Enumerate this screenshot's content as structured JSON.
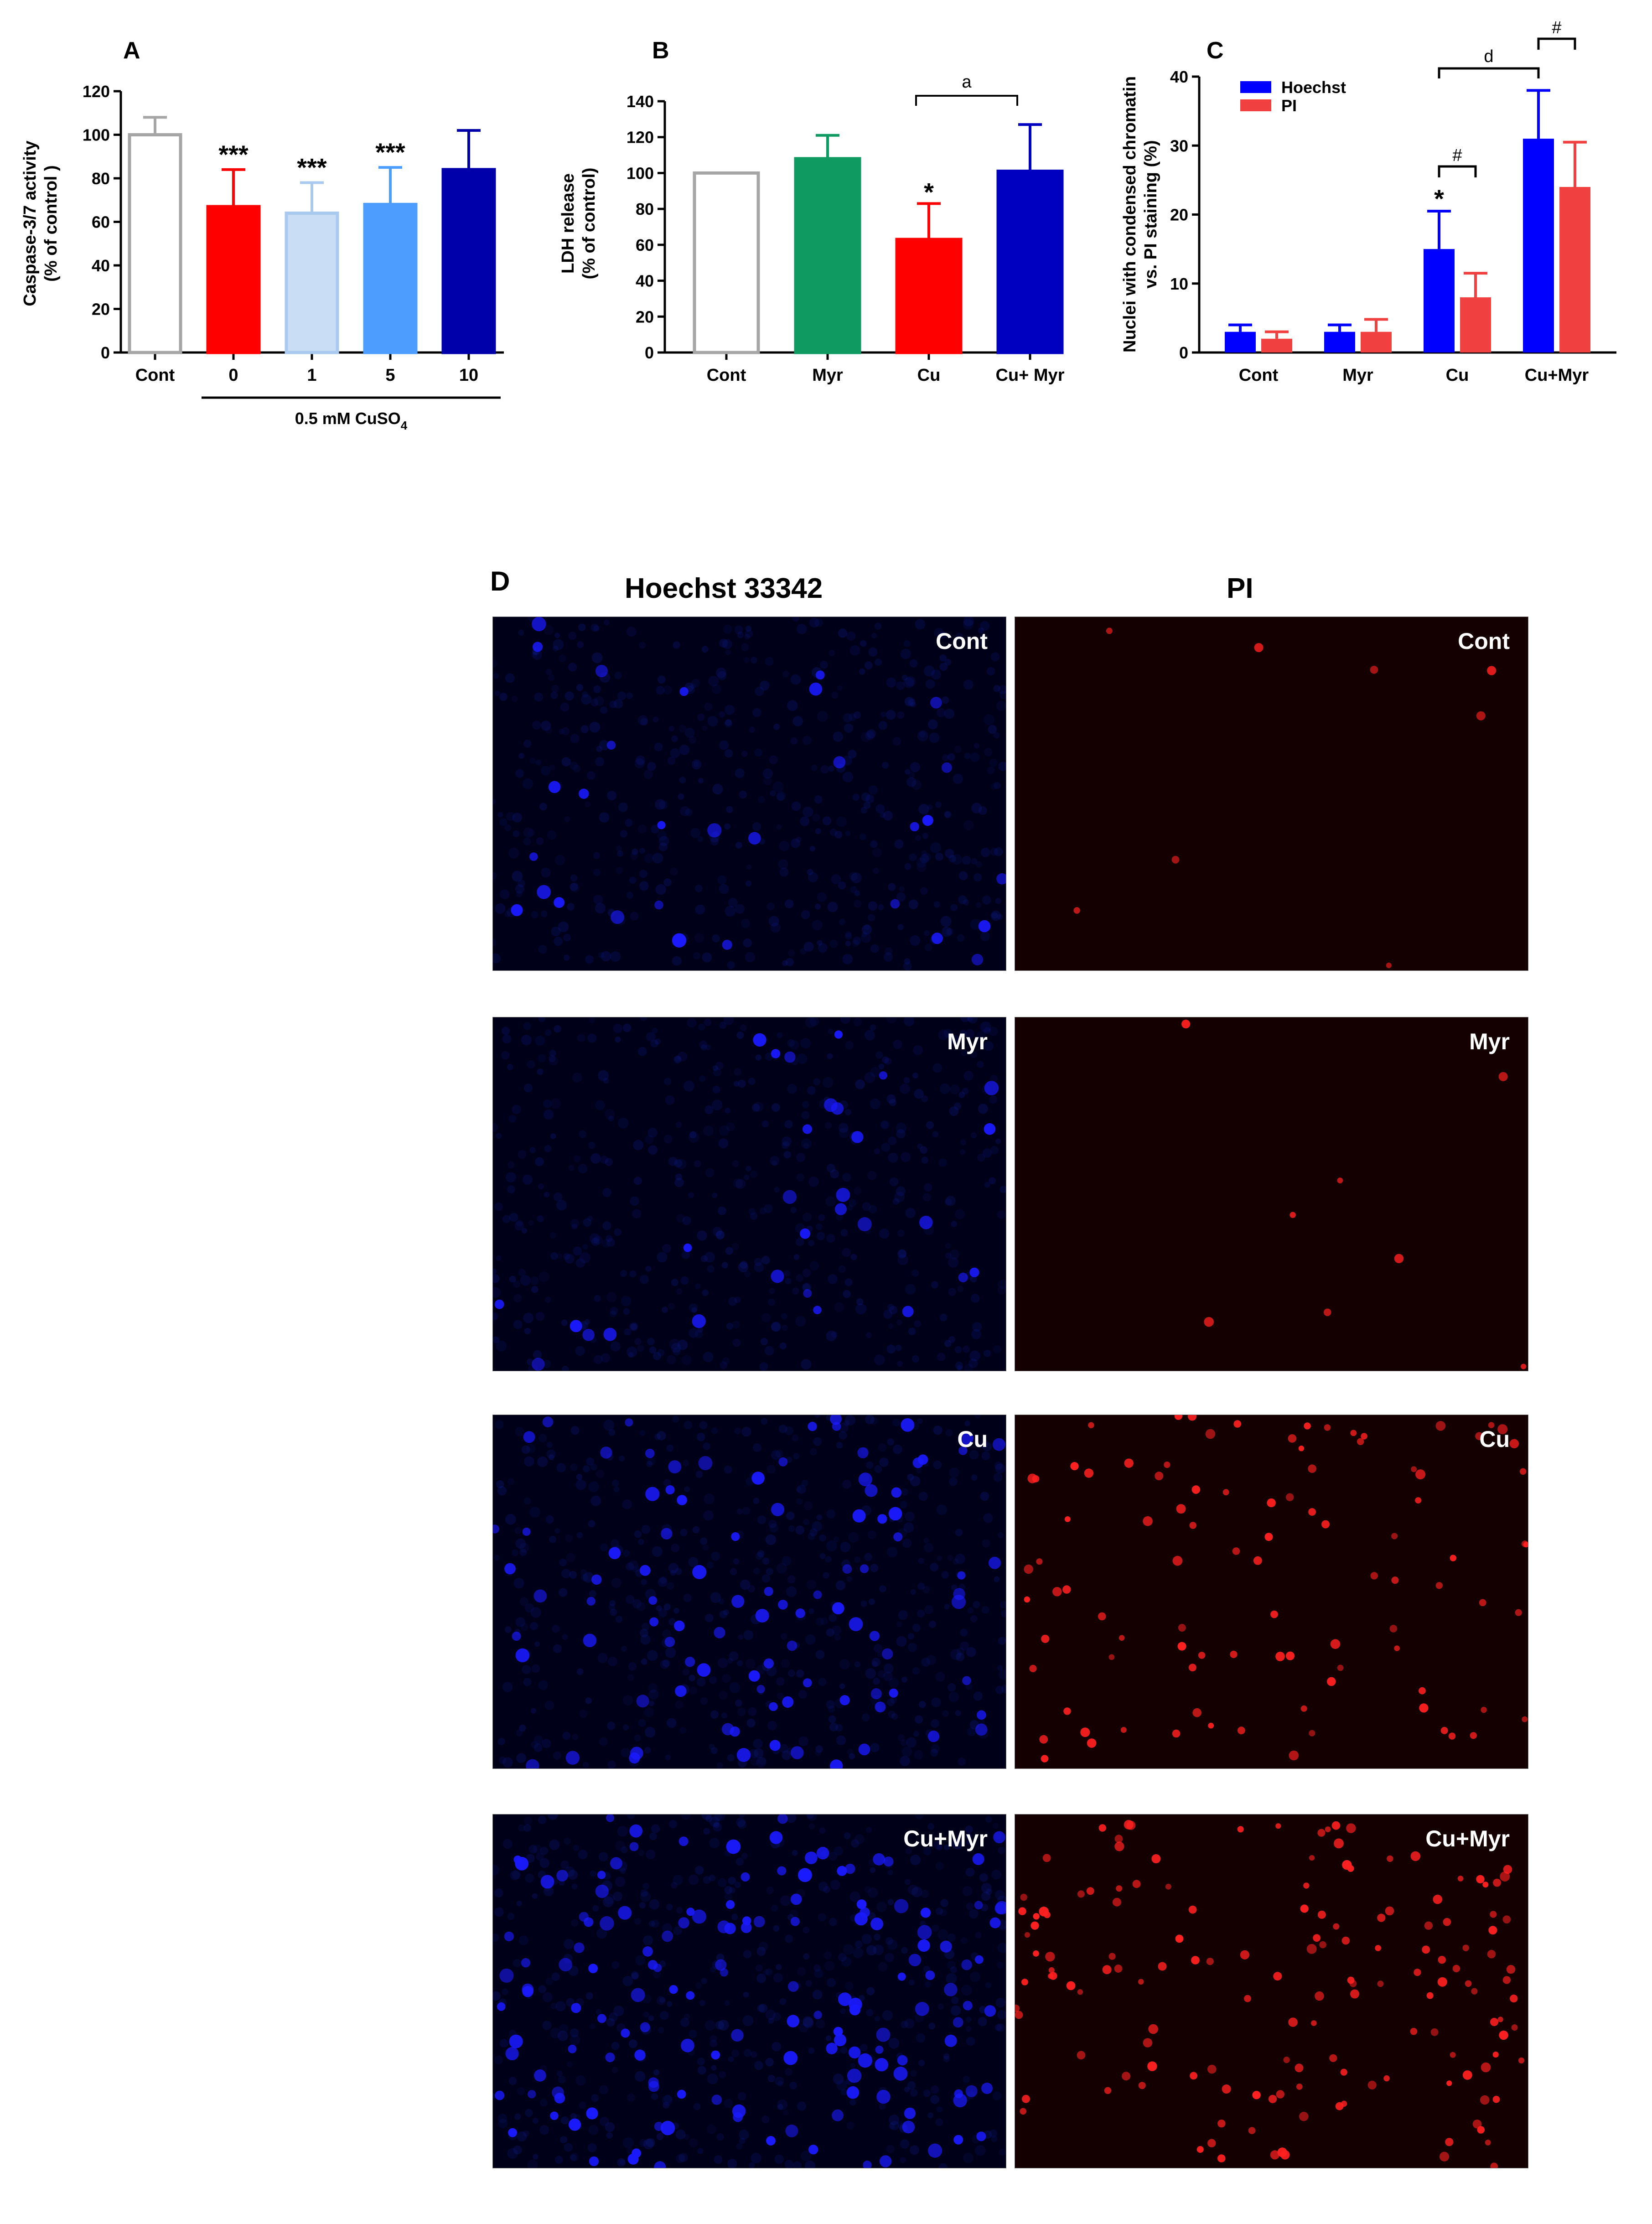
{
  "chart_data": [
    {
      "panel": "A",
      "type": "bar",
      "ylabel_line1": "Caspase-3/7 activity",
      "ylabel_line2": "(% of control )",
      "ylim": [
        0,
        120
      ],
      "yticks": [
        0,
        20,
        40,
        60,
        80,
        100,
        120
      ],
      "categories": [
        "Cont",
        "0",
        "1",
        "5",
        "10"
      ],
      "values": [
        100,
        67,
        64,
        68,
        84
      ],
      "errors": [
        8,
        17,
        14,
        17,
        18
      ],
      "colors": [
        "#ffffff",
        "#ff0000",
        "#c9ddf5",
        "#4d9dff",
        "#0000aa"
      ],
      "edge_colors": [
        "#a6a6a6",
        "#ff0000",
        "#a9c9ee",
        "#4d9dff",
        "#0000aa"
      ],
      "significance": [
        "",
        "***",
        "***",
        "***",
        ""
      ],
      "group_label": "0.5 mM CuSO",
      "group_label_sub": "4"
    },
    {
      "panel": "B",
      "type": "bar",
      "ylabel_line1": "LDH release",
      "ylabel_line2": "(% of control)",
      "ylim": [
        0,
        140
      ],
      "yticks": [
        0,
        20,
        40,
        60,
        80,
        100,
        120,
        140
      ],
      "categories": [
        "Cont",
        "Myr",
        "Cu",
        "Cu+ Myr"
      ],
      "values": [
        100,
        108,
        63,
        101
      ],
      "errors": [
        0,
        13,
        20,
        26
      ],
      "colors": [
        "#ffffff",
        "#0e9a60",
        "#ff0000",
        "#0000c0"
      ],
      "edge_colors": [
        "#a6a6a6",
        "#0e9a60",
        "#ff0000",
        "#0000c0"
      ],
      "significance": [
        "",
        "",
        "*",
        ""
      ],
      "bracket_label": "a"
    },
    {
      "panel": "C",
      "type": "bar",
      "ylabel_line1": "Nuclei with condensed chromatin",
      "ylabel_line2": "vs. PI staining (%)",
      "ylim": [
        0,
        40
      ],
      "yticks": [
        0,
        10,
        20,
        30,
        40
      ],
      "categories": [
        "Cont",
        "Myr",
        "Cu",
        "Cu+Myr"
      ],
      "series": [
        {
          "name": "Hoechst",
          "values": [
            3,
            3,
            15,
            31
          ],
          "errors": [
            1,
            1,
            5.5,
            7
          ],
          "color": "#0000ff"
        },
        {
          "name": "PI",
          "values": [
            2,
            3,
            8,
            24
          ],
          "errors": [
            1,
            1.8,
            3.5,
            6.5
          ],
          "color": "#f04040"
        }
      ],
      "significance_hoechst": [
        "",
        "",
        "*",
        ""
      ],
      "bracket_d_label": "d",
      "bracket_hash_label": "#"
    }
  ],
  "micrographs": {
    "panel_letter": "D",
    "column_headers": [
      "Hoechst 33342",
      "PI"
    ],
    "rows": [
      {
        "label": "Cont",
        "hoechst_density": "low",
        "pi_density": "very-low"
      },
      {
        "label": "Myr",
        "hoechst_density": "low",
        "pi_density": "very-low"
      },
      {
        "label": "Cu",
        "hoechst_density": "medium",
        "pi_density": "medium"
      },
      {
        "label": "Cu+Myr",
        "hoechst_density": "high",
        "pi_density": "high"
      }
    ],
    "colors": {
      "hoechst": "#1a1aff",
      "pi": "#ff2020"
    }
  }
}
